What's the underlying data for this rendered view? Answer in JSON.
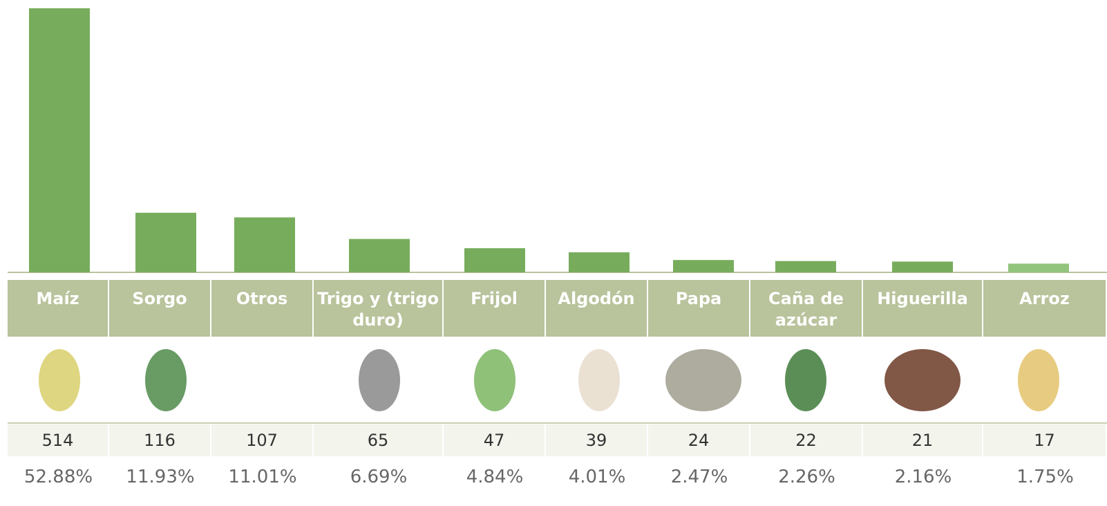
{
  "chart_data": {
    "type": "bar",
    "categories": [
      "Maíz",
      "Sorgo",
      "Otros",
      "Trigo y (trigo duro)",
      "Frijol",
      "Algodón",
      "Papa",
      "Caña de azúcar",
      "Higuerilla",
      "Arroz"
    ],
    "values": [
      514,
      116,
      107,
      65,
      47,
      39,
      24,
      22,
      21,
      17
    ],
    "percentages": [
      "52.88%",
      "11.93%",
      "11.01%",
      "6.69%",
      "4.84%",
      "4.01%",
      "2.47%",
      "2.26%",
      "2.16%",
      "1.75%"
    ],
    "colors": [
      "#77ac5c",
      "#77ac5c",
      "#77ac5c",
      "#77ac5c",
      "#77ac5c",
      "#77ac5c",
      "#77ac5c",
      "#77ac5c",
      "#77ac5c",
      "#93c47d"
    ]
  }
}
